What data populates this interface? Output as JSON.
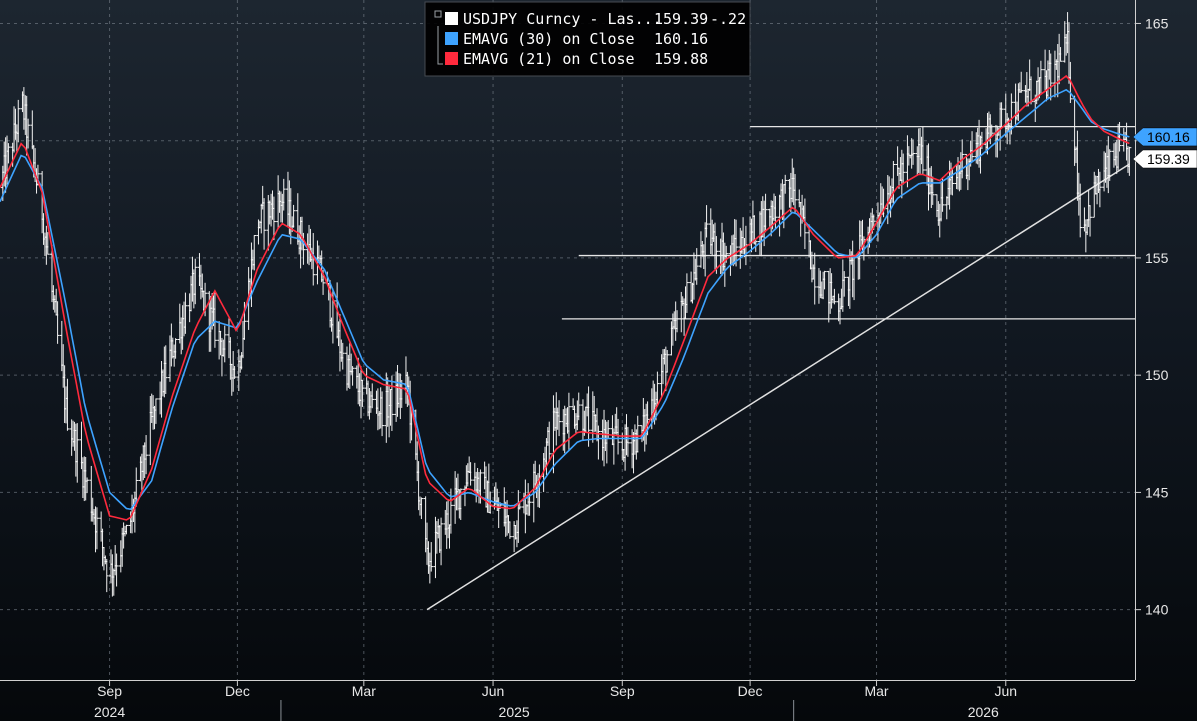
{
  "chart_data": {
    "type": "line",
    "title": "",
    "xlabel": "",
    "ylabel": "",
    "ylim": [
      137,
      166
    ],
    "yticks": [
      140,
      145,
      150,
      155,
      160,
      165
    ],
    "grid": true,
    "x_month_ticks": [
      "Sep",
      "Dec",
      "Mar",
      "Jun",
      "Sep",
      "Dec",
      "Mar",
      "Jun"
    ],
    "x_month_dates": [
      "2024-09-01",
      "2024-12-01",
      "2025-03-01",
      "2025-06-01",
      "2025-09-01",
      "2025-12-01",
      "2026-03-01",
      "2026-06-01"
    ],
    "x_year_labels": [
      {
        "label": "2024",
        "date": "2024-09-01"
      },
      {
        "label": "2025",
        "date": "2025-06-16"
      },
      {
        "label": "2026",
        "date": "2026-05-16"
      }
    ],
    "x_year_separators": [
      "2025-01-01",
      "2026-01-01"
    ],
    "xlim": [
      "2024-06-15",
      "2026-09-01"
    ],
    "legend": {
      "placement": "top-center",
      "entries": [
        {
          "name": "USDJPY Curncy - Las...",
          "value": "159.39",
          "change": "-.22",
          "color": "#ffffff"
        },
        {
          "name": "EMAVG (30)  on Close",
          "value": "160.16",
          "color": "#3ea3ff"
        },
        {
          "name": "EMAVG (21)  on Close",
          "value": "159.88",
          "color": "#ff2a3d"
        }
      ]
    },
    "price_tags": [
      {
        "value": "160.16",
        "y": 160.16,
        "color": "#3ea3ff"
      },
      {
        "value": "159.39",
        "y": 159.39,
        "color": "#ffffff"
      }
    ],
    "horizontal_levels": [
      {
        "y": 160.6,
        "x_from": "2025-12-01"
      },
      {
        "y": 155.1,
        "x_from": "2025-08-01"
      },
      {
        "y": 152.4,
        "x_from": "2025-07-20"
      }
    ],
    "trendline": {
      "x": [
        "2025-04-15",
        "2026-08-28"
      ],
      "y": [
        140.0,
        159.0
      ]
    },
    "series": [
      {
        "name": "USDJPY Curncy",
        "style": "ohlc-bars",
        "x": [
          "2024-06-15",
          "2024-07-01",
          "2024-07-15",
          "2024-08-01",
          "2024-08-15",
          "2024-09-01",
          "2024-09-15",
          "2024-10-01",
          "2024-10-15",
          "2024-11-01",
          "2024-11-15",
          "2024-12-01",
          "2024-12-15",
          "2025-01-01",
          "2025-01-15",
          "2025-02-01",
          "2025-02-15",
          "2025-03-01",
          "2025-03-15",
          "2025-04-01",
          "2025-04-15",
          "2025-05-01",
          "2025-05-15",
          "2025-06-01",
          "2025-06-15",
          "2025-07-01",
          "2025-07-15",
          "2025-08-01",
          "2025-08-15",
          "2025-09-01",
          "2025-09-15",
          "2025-10-01",
          "2025-10-15",
          "2025-11-01",
          "2025-11-15",
          "2025-12-01",
          "2025-12-15",
          "2026-01-01",
          "2026-01-15",
          "2026-02-01",
          "2026-02-15",
          "2026-03-01",
          "2026-03-15",
          "2026-04-01",
          "2026-04-15",
          "2026-05-01",
          "2026-05-15",
          "2026-06-01",
          "2026-06-15",
          "2026-07-01",
          "2026-07-15",
          "2026-07-25",
          "2026-08-01",
          "2026-08-10",
          "2026-08-20",
          "2026-08-28"
        ],
        "y": [
          158.0,
          161.5,
          157.0,
          148.5,
          145.5,
          141.5,
          143.5,
          148.0,
          151.0,
          154.0,
          152.0,
          150.0,
          156.5,
          157.5,
          156.0,
          154.0,
          150.5,
          149.0,
          148.5,
          149.5,
          142.0,
          144.0,
          146.0,
          144.5,
          143.5,
          145.5,
          148.0,
          148.5,
          147.5,
          147.0,
          147.5,
          150.5,
          153.0,
          156.0,
          155.0,
          156.0,
          157.0,
          158.0,
          154.5,
          153.0,
          155.0,
          157.0,
          158.5,
          159.5,
          157.0,
          159.0,
          160.0,
          161.0,
          162.0,
          162.5,
          164.0,
          156.0,
          157.5,
          158.5,
          159.5,
          159.39
        ]
      },
      {
        "name": "EMAVG (30)",
        "style": "line",
        "color": "#3ea3ff",
        "x": [
          "2024-06-15",
          "2024-07-01",
          "2024-07-15",
          "2024-08-01",
          "2024-08-15",
          "2024-09-01",
          "2024-09-15",
          "2024-10-01",
          "2024-10-15",
          "2024-11-01",
          "2024-11-15",
          "2024-12-01",
          "2024-12-15",
          "2025-01-01",
          "2025-01-15",
          "2025-02-01",
          "2025-02-15",
          "2025-03-01",
          "2025-03-15",
          "2025-04-01",
          "2025-04-15",
          "2025-05-01",
          "2025-05-15",
          "2025-06-01",
          "2025-06-15",
          "2025-07-01",
          "2025-07-15",
          "2025-08-01",
          "2025-08-15",
          "2025-09-01",
          "2025-09-15",
          "2025-10-01",
          "2025-10-15",
          "2025-11-01",
          "2025-11-15",
          "2025-12-01",
          "2025-12-15",
          "2026-01-01",
          "2026-01-15",
          "2026-02-01",
          "2026-02-15",
          "2026-03-01",
          "2026-03-15",
          "2026-04-01",
          "2026-04-15",
          "2026-05-01",
          "2026-05-15",
          "2026-06-01",
          "2026-06-15",
          "2026-07-01",
          "2026-07-15",
          "2026-07-25",
          "2026-08-01",
          "2026-08-10",
          "2026-08-20",
          "2026-08-28"
        ],
        "y": [
          157.4,
          159.5,
          158.0,
          153.0,
          148.5,
          145.0,
          144.2,
          145.5,
          148.5,
          151.5,
          152.3,
          152.0,
          154.0,
          156.0,
          155.8,
          154.5,
          152.5,
          150.5,
          149.8,
          149.6,
          146.0,
          144.8,
          145.0,
          144.6,
          144.4,
          145.0,
          146.2,
          147.2,
          147.3,
          147.3,
          147.3,
          148.8,
          150.8,
          153.5,
          154.6,
          155.3,
          156.0,
          157.0,
          156.2,
          155.2,
          155.0,
          156.0,
          157.5,
          158.2,
          158.2,
          158.8,
          159.4,
          160.3,
          161.0,
          161.8,
          162.2,
          161.4,
          160.8,
          160.5,
          160.3,
          160.16
        ]
      },
      {
        "name": "EMAVG (21)",
        "style": "line",
        "color": "#ff2a3d",
        "x": [
          "2024-06-15",
          "2024-07-01",
          "2024-07-15",
          "2024-08-01",
          "2024-08-15",
          "2024-09-01",
          "2024-09-15",
          "2024-10-01",
          "2024-10-15",
          "2024-11-01",
          "2024-11-15",
          "2024-12-01",
          "2024-12-15",
          "2025-01-01",
          "2025-01-15",
          "2025-02-01",
          "2025-02-15",
          "2025-03-01",
          "2025-03-15",
          "2025-04-01",
          "2025-04-15",
          "2025-05-01",
          "2025-05-15",
          "2025-06-01",
          "2025-06-15",
          "2025-07-01",
          "2025-07-15",
          "2025-08-01",
          "2025-08-15",
          "2025-09-01",
          "2025-09-15",
          "2025-10-01",
          "2025-10-15",
          "2025-11-01",
          "2025-11-15",
          "2025-12-01",
          "2025-12-15",
          "2026-01-01",
          "2026-01-15",
          "2026-02-01",
          "2026-02-15",
          "2026-03-01",
          "2026-03-15",
          "2026-04-01",
          "2026-04-15",
          "2026-05-01",
          "2026-05-15",
          "2026-06-01",
          "2026-06-15",
          "2026-07-01",
          "2026-07-15",
          "2026-07-25",
          "2026-08-01",
          "2026-08-10",
          "2026-08-20",
          "2026-08-28"
        ],
        "y": [
          158.0,
          160.0,
          157.8,
          152.0,
          147.5,
          144.0,
          143.8,
          146.0,
          149.0,
          152.0,
          153.6,
          151.8,
          154.5,
          156.5,
          156.0,
          154.2,
          152.0,
          150.0,
          149.6,
          149.4,
          145.5,
          144.6,
          145.2,
          144.4,
          144.3,
          145.2,
          146.8,
          147.6,
          147.5,
          147.4,
          147.4,
          149.3,
          151.5,
          154.2,
          155.0,
          155.6,
          156.3,
          157.2,
          156.0,
          155.0,
          155.1,
          156.5,
          158.0,
          158.6,
          158.3,
          159.2,
          159.8,
          160.7,
          161.5,
          162.2,
          162.8,
          161.6,
          160.9,
          160.4,
          160.1,
          159.88
        ]
      }
    ]
  }
}
